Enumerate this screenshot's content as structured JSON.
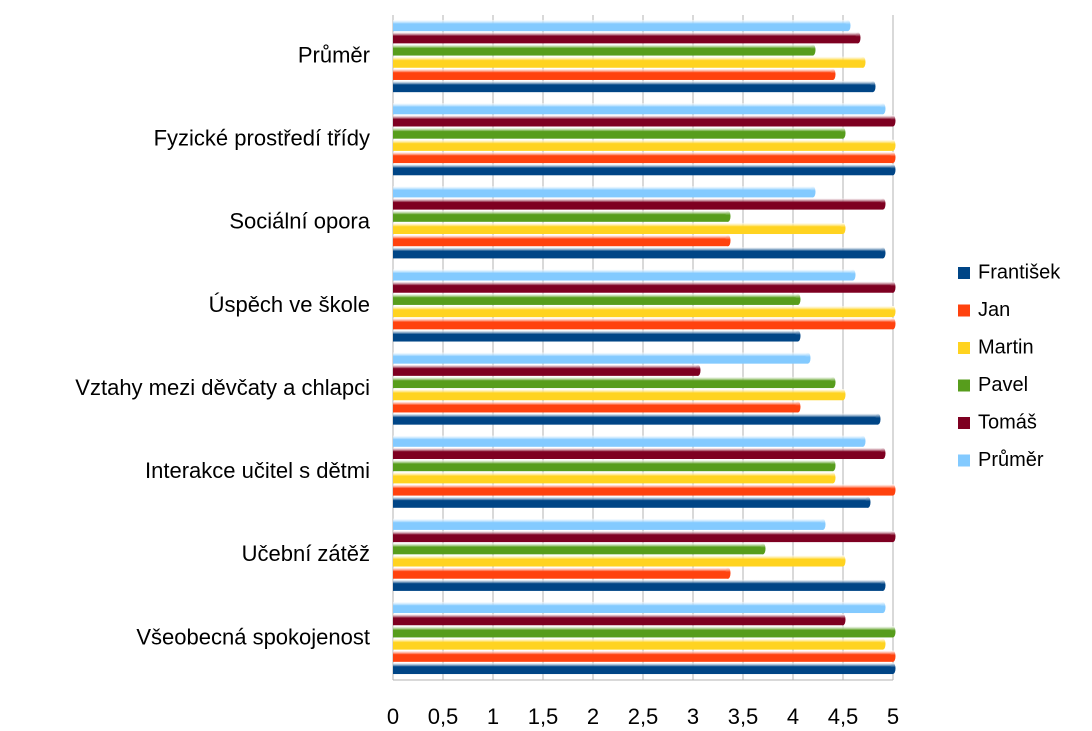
{
  "chart_data": {
    "type": "bar",
    "orientation": "horizontal",
    "categories": [
      "Průměr",
      "Fyzické prostředí třídy",
      "Sociální opora",
      "Úspěch ve škole",
      "Vztahy mezi děvčaty a chlapci",
      "Interakce učitel s dětmi",
      "Učební zátěž",
      "Všeobecná spokojenost"
    ],
    "series": [
      {
        "name": "František",
        "color": "#004586",
        "values": [
          4.8,
          5,
          4.9,
          4.05,
          4.85,
          4.75,
          4.9,
          5
        ]
      },
      {
        "name": "Jan",
        "color": "#ff420e",
        "values": [
          4.4,
          5,
          3.35,
          5,
          4.05,
          5,
          3.35,
          5
        ]
      },
      {
        "name": "Martin",
        "color": "#ffd320",
        "values": [
          4.7,
          5,
          4.5,
          5,
          4.5,
          4.4,
          4.5,
          4.9
        ]
      },
      {
        "name": "Pavel",
        "color": "#579d1c",
        "values": [
          4.2,
          4.5,
          3.35,
          4.05,
          4.4,
          4.4,
          3.7,
          5
        ]
      },
      {
        "name": "Tomáš",
        "color": "#7e0021",
        "values": [
          4.65,
          5,
          4.9,
          5,
          3.05,
          4.9,
          5,
          4.5
        ]
      },
      {
        "name": "Průměr",
        "color": "#83caff",
        "values": [
          4.55,
          4.9,
          4.2,
          4.6,
          4.15,
          4.7,
          4.3,
          4.9
        ]
      }
    ],
    "xlim": [
      0,
      5
    ],
    "xticks": [
      0,
      {
        "value": 0.5,
        "label": "0,5"
      },
      1,
      {
        "value": 1.5,
        "label": "1,5"
      },
      2,
      {
        "value": 2.5,
        "label": "2,5"
      },
      3,
      {
        "value": 3.5,
        "label": "3,5"
      },
      4,
      {
        "value": 4.5,
        "label": "4,5"
      },
      5
    ],
    "grid": true,
    "legend": "right"
  }
}
